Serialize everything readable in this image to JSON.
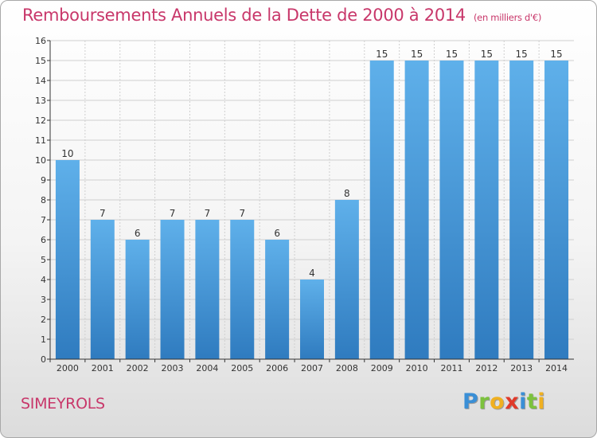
{
  "chart_data": {
    "type": "bar",
    "title": "Remboursements Annuels de la Dette de 2000 à 2014",
    "subtitle": "(en milliers d'€)",
    "categories": [
      "2000",
      "2001",
      "2002",
      "2003",
      "2004",
      "2005",
      "2006",
      "2007",
      "2008",
      "2009",
      "2010",
      "2011",
      "2012",
      "2013",
      "2014"
    ],
    "values": [
      10,
      7,
      6,
      7,
      7,
      7,
      6,
      4,
      8,
      15,
      15,
      15,
      15,
      15,
      15
    ],
    "data_labels": [
      "10",
      "7",
      "6",
      "7",
      "7",
      "7",
      "6",
      "4",
      "8",
      "15",
      "15",
      "15",
      "15",
      "15",
      "15"
    ],
    "ylim": [
      0,
      16
    ],
    "yticks": [
      "0",
      "1",
      "2",
      "3",
      "4",
      "5",
      "6",
      "7",
      "8",
      "9",
      "10",
      "11",
      "12",
      "13",
      "14",
      "15",
      "16"
    ],
    "grid": true,
    "colors": {
      "bar_light": "#5fb0ea",
      "bar_dark": "#2f7bbf",
      "grid": "#cfcfcf",
      "axis": "#333333"
    }
  },
  "footer": {
    "town": "SIMEYROLS",
    "logo": [
      "P",
      "r",
      "o",
      "x",
      "i",
      "t",
      "i"
    ]
  }
}
